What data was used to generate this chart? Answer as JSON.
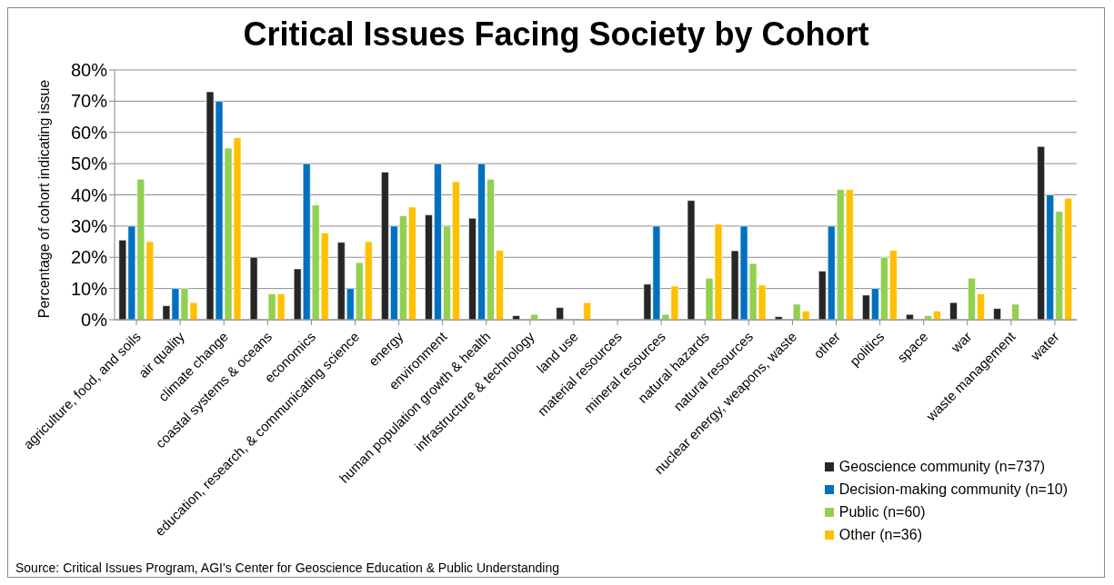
{
  "chart_data": {
    "type": "bar",
    "title": "Critical Issues Facing Society by Cohort",
    "ylabel": "Percentage of cohort indicating issue",
    "categories": [
      "agriculture, food, and soils",
      "air quality",
      "climate change",
      "coastal systems & oceans",
      "economics",
      "education, research, & communicating science",
      "energy",
      "environment",
      "human population growth & health",
      "infrastructure & technology",
      "land use",
      "material resources",
      "mineral resources",
      "natural hazards",
      "natural resources",
      "nuclear energy, weapons, waste",
      "other",
      "politics",
      "space",
      "war",
      "waste management",
      "water"
    ],
    "series": [
      {
        "name": "Geoscience community (n=737)",
        "color": "#262626",
        "values": [
          25.5,
          4.5,
          73,
          20,
          16.3,
          24.8,
          47.3,
          33.6,
          32.5,
          1.3,
          3.9,
          0,
          11.4,
          38.2,
          22.1,
          1.0,
          15.6,
          7.9,
          1.7,
          5.5,
          3.6,
          55.5
        ]
      },
      {
        "name": "Decision-making community (n=10)",
        "color": "#0070c0",
        "values": [
          30,
          10,
          70,
          0,
          50,
          10,
          30,
          50,
          50,
          0,
          0,
          0,
          30,
          0,
          30,
          0,
          30,
          10,
          0,
          0,
          0,
          40
        ]
      },
      {
        "name": "Public (n=60)",
        "color": "#92d050",
        "values": [
          45,
          10,
          55,
          8.3,
          36.7,
          18.3,
          33.3,
          30,
          45,
          1.7,
          0,
          0,
          1.7,
          13.3,
          18,
          5,
          41.7,
          20,
          1.3,
          13.3,
          5,
          34.7
        ]
      },
      {
        "name": "Other (n=36)",
        "color": "#ffc000",
        "values": [
          25,
          5.5,
          58.3,
          8.3,
          27.8,
          25,
          36.1,
          44.2,
          22.2,
          0,
          5.5,
          0,
          10.8,
          30.6,
          11.1,
          2.8,
          41.7,
          22.2,
          2.8,
          8.3,
          0,
          38.9
        ]
      }
    ],
    "ylim": [
      0,
      80
    ],
    "yticks": [
      {
        "value": 0,
        "label": "0%"
      },
      {
        "value": 10,
        "label": "10%"
      },
      {
        "value": 20,
        "label": "20%"
      },
      {
        "value": 30,
        "label": "30%"
      },
      {
        "value": 40,
        "label": "40%"
      },
      {
        "value": 50,
        "label": "50%"
      },
      {
        "value": 60,
        "label": "60%"
      },
      {
        "value": 70,
        "label": "70%"
      },
      {
        "value": 80,
        "label": "80%"
      }
    ],
    "grid": "y",
    "legend": "bottom right",
    "annotations": [
      "Source: Critical Issues Program, AGI's Center for Geoscience Education & Public Understanding"
    ]
  }
}
